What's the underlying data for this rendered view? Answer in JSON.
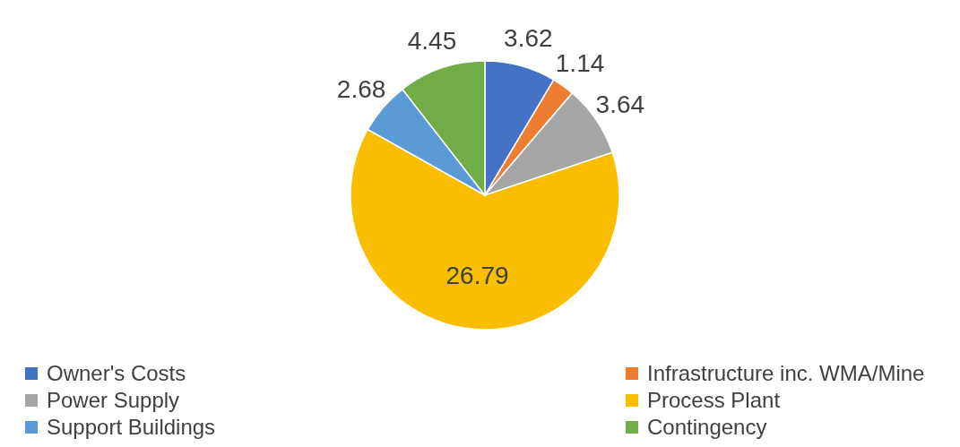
{
  "chart_data": {
    "type": "pie",
    "categories": [
      "Owner's Costs",
      "Infrastructure inc. WMA/Mine",
      "Power Supply",
      "Process Plant",
      "Support Buildings",
      "Contingency"
    ],
    "values": [
      3.62,
      1.14,
      3.64,
      26.79,
      2.68,
      4.45
    ],
    "colors": [
      "#4472c4",
      "#ed7d31",
      "#a5a5a5",
      "#f9be00",
      "#5b9bd5",
      "#70ad47"
    ],
    "data_labels": true,
    "legend": "bottom"
  }
}
